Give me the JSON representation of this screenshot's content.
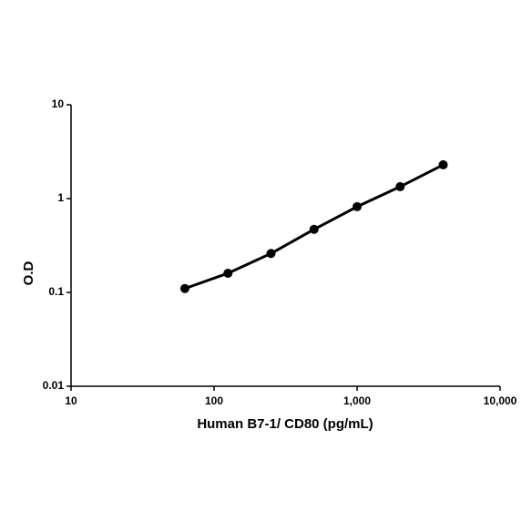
{
  "chart_data": {
    "type": "line",
    "xlabel": "Human B7-1/ CD80 (pg/mL)",
    "ylabel": "O.D",
    "x": [
      62.5,
      125,
      250,
      500,
      1000,
      2000,
      4000
    ],
    "series": [
      {
        "color": "#000000",
        "values": [
          0.11,
          0.16,
          0.26,
          0.47,
          0.82,
          1.34,
          2.29
        ]
      }
    ],
    "xscale": "log",
    "yscale": "log",
    "xlim": [
      10,
      10000
    ],
    "ylim": [
      0.01,
      10
    ],
    "xticks": [
      10,
      100,
      {
        "value": 1000,
        "label": "1,000"
      },
      {
        "value": 10000,
        "label": "10,000"
      }
    ],
    "yticks": [
      0.01,
      0.1,
      1,
      10
    ],
    "grid": false
  }
}
